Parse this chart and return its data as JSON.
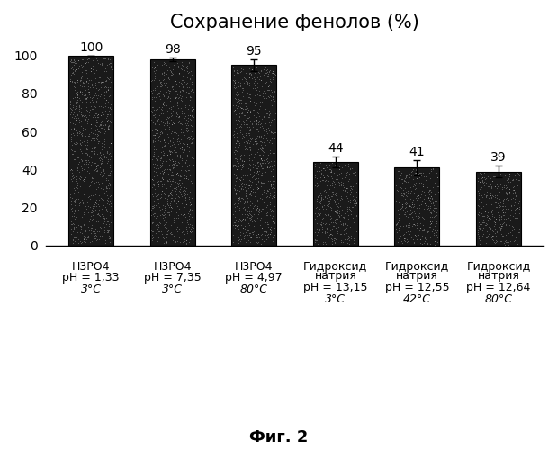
{
  "title": "Сохранение фенолов (%)",
  "values": [
    100,
    98,
    95,
    44,
    41,
    39
  ],
  "errors": [
    0,
    1,
    3,
    3,
    4,
    3
  ],
  "labels_line1": [
    "Н3РО4",
    "Н3РО4",
    "Н3РО4",
    "Гидроксид",
    "Гидроксид",
    "Гидроксид"
  ],
  "labels_line2": [
    "",
    "",
    "",
    "натрия",
    "натрия",
    "натрия"
  ],
  "labels_line3": [
    "pH = 1,33",
    "pH = 7,35",
    "pH = 4,97",
    "pH = 13,15",
    "pH = 12,55",
    "pH = 12,64"
  ],
  "labels_line4": [
    "3°С",
    "3°С",
    "80°С",
    "3°С",
    "42°С",
    "80°С"
  ],
  "bar_color": "#1a1a1a",
  "background_color": "#ffffff",
  "ylim": [
    0,
    108
  ],
  "yticks": [
    0,
    20,
    40,
    60,
    80,
    100
  ],
  "caption": "Фиг. 2",
  "title_fontsize": 15,
  "label_fontsize": 9,
  "value_fontsize": 10,
  "caption_fontsize": 13,
  "ytick_fontsize": 10
}
